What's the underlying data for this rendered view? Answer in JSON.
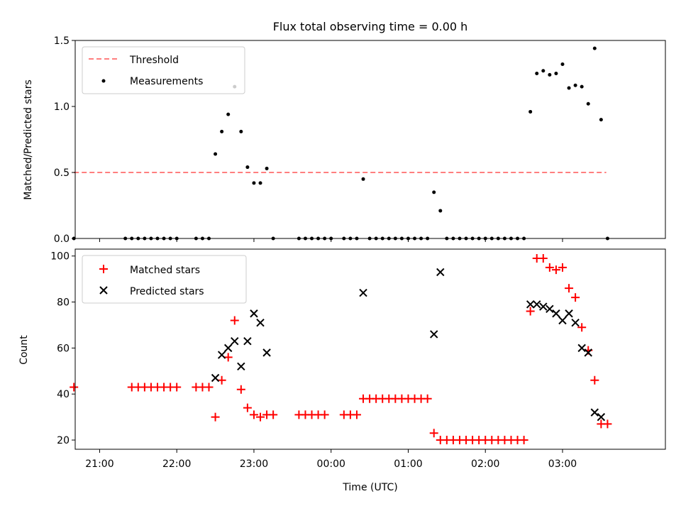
{
  "figure": {
    "title": "Flux total observing time = 0.00 h",
    "xlabel": "Time (UTC)"
  },
  "colors": {
    "threshold": "#ff7f7f",
    "measurements": "#000000",
    "matched": "#ff0000",
    "predicted": "#000000"
  },
  "chart_data": [
    {
      "type": "scatter",
      "title": "Flux total observing time = 0.00 h",
      "xlabel": "",
      "ylabel": "Matched/Predicted stars",
      "xlim": [
        "20:41",
        "04:20"
      ],
      "ylim": [
        0,
        1.5
      ],
      "yticks": [
        {
          "value": 0,
          "label": "0.0"
        },
        {
          "value": 0.5,
          "label": "0.5"
        },
        {
          "value": 1.0,
          "label": "1.0"
        },
        {
          "value": 1.5,
          "label": "1.5"
        }
      ],
      "legend": {
        "placement": "upper-left",
        "entries": [
          "Threshold",
          "Measurements"
        ]
      },
      "threshold": {
        "name": "Threshold",
        "value": 0.5,
        "x_start": "20:40",
        "x_end": "03:34"
      },
      "series": [
        {
          "name": "Measurements",
          "marker": "dot",
          "points": [
            [
              "20:40",
              0
            ],
            [
              "21:20",
              0
            ],
            [
              "21:25",
              0
            ],
            [
              "21:30",
              0
            ],
            [
              "21:35",
              0
            ],
            [
              "21:40",
              0
            ],
            [
              "21:45",
              0
            ],
            [
              "21:50",
              0
            ],
            [
              "21:55",
              0
            ],
            [
              "22:00",
              0
            ],
            [
              "22:15",
              0
            ],
            [
              "22:20",
              0
            ],
            [
              "22:25",
              0
            ],
            [
              "22:30",
              0.64
            ],
            [
              "22:35",
              0.81
            ],
            [
              "22:40",
              0.94
            ],
            [
              "22:45",
              1.15
            ],
            [
              "22:50",
              0.81
            ],
            [
              "22:55",
              0.54
            ],
            [
              "23:00",
              0.42
            ],
            [
              "23:05",
              0.42
            ],
            [
              "23:10",
              0.53
            ],
            [
              "23:15",
              0
            ],
            [
              "23:35",
              0
            ],
            [
              "23:40",
              0
            ],
            [
              "23:45",
              0
            ],
            [
              "23:50",
              0
            ],
            [
              "23:55",
              0
            ],
            [
              "00:00",
              0
            ],
            [
              "00:10",
              0
            ],
            [
              "00:15",
              0
            ],
            [
              "00:20",
              0
            ],
            [
              "00:25",
              0.45
            ],
            [
              "00:30",
              0
            ],
            [
              "00:35",
              0
            ],
            [
              "00:40",
              0
            ],
            [
              "00:45",
              0
            ],
            [
              "00:50",
              0
            ],
            [
              "00:55",
              0
            ],
            [
              "01:00",
              0
            ],
            [
              "01:05",
              0
            ],
            [
              "01:10",
              0
            ],
            [
              "01:15",
              0
            ],
            [
              "01:20",
              0.35
            ],
            [
              "01:25",
              0.21
            ],
            [
              "01:30",
              0
            ],
            [
              "01:35",
              0
            ],
            [
              "01:40",
              0
            ],
            [
              "01:45",
              0
            ],
            [
              "01:50",
              0
            ],
            [
              "01:55",
              0
            ],
            [
              "02:00",
              0
            ],
            [
              "02:05",
              0
            ],
            [
              "02:10",
              0
            ],
            [
              "02:15",
              0
            ],
            [
              "02:20",
              0
            ],
            [
              "02:25",
              0
            ],
            [
              "02:30",
              0
            ],
            [
              "02:35",
              0.96
            ],
            [
              "02:40",
              1.25
            ],
            [
              "02:45",
              1.27
            ],
            [
              "02:50",
              1.24
            ],
            [
              "02:55",
              1.25
            ],
            [
              "03:00",
              1.32
            ],
            [
              "03:05",
              1.14
            ],
            [
              "03:10",
              1.16
            ],
            [
              "03:15",
              1.15
            ],
            [
              "03:20",
              1.02
            ],
            [
              "03:25",
              1.44
            ],
            [
              "03:30",
              0.9
            ],
            [
              "03:35",
              0
            ]
          ]
        }
      ]
    },
    {
      "type": "scatter",
      "xlabel": "Time (UTC)",
      "ylabel": "Count",
      "xlim": [
        "20:41",
        "04:20"
      ],
      "ylim": [
        16,
        103
      ],
      "xticks": [
        "21:00",
        "22:00",
        "23:00",
        "00:00",
        "01:00",
        "02:00",
        "03:00"
      ],
      "yticks": [
        20,
        40,
        60,
        80,
        100
      ],
      "legend": {
        "placement": "upper-left",
        "entries": [
          "Matched stars",
          "Predicted stars"
        ]
      },
      "series": [
        {
          "name": "Matched stars",
          "marker": "plus",
          "points": [
            [
              "20:40",
              43
            ],
            [
              "21:25",
              43
            ],
            [
              "21:30",
              43
            ],
            [
              "21:35",
              43
            ],
            [
              "21:40",
              43
            ],
            [
              "21:45",
              43
            ],
            [
              "21:50",
              43
            ],
            [
              "21:55",
              43
            ],
            [
              "22:00",
              43
            ],
            [
              "22:15",
              43
            ],
            [
              "22:20",
              43
            ],
            [
              "22:25",
              43
            ],
            [
              "22:30",
              30
            ],
            [
              "22:35",
              46
            ],
            [
              "22:40",
              56
            ],
            [
              "22:45",
              72
            ],
            [
              "22:50",
              42
            ],
            [
              "22:55",
              34
            ],
            [
              "23:00",
              31
            ],
            [
              "23:05",
              30
            ],
            [
              "23:10",
              31
            ],
            [
              "23:15",
              31
            ],
            [
              "23:35",
              31
            ],
            [
              "23:40",
              31
            ],
            [
              "23:45",
              31
            ],
            [
              "23:50",
              31
            ],
            [
              "23:55",
              31
            ],
            [
              "00:10",
              31
            ],
            [
              "00:15",
              31
            ],
            [
              "00:20",
              31
            ],
            [
              "00:25",
              38
            ],
            [
              "00:30",
              38
            ],
            [
              "00:35",
              38
            ],
            [
              "00:40",
              38
            ],
            [
              "00:45",
              38
            ],
            [
              "00:50",
              38
            ],
            [
              "00:55",
              38
            ],
            [
              "01:00",
              38
            ],
            [
              "01:05",
              38
            ],
            [
              "01:10",
              38
            ],
            [
              "01:15",
              38
            ],
            [
              "01:20",
              23
            ],
            [
              "01:25",
              20
            ],
            [
              "01:30",
              20
            ],
            [
              "01:35",
              20
            ],
            [
              "01:40",
              20
            ],
            [
              "01:45",
              20
            ],
            [
              "01:50",
              20
            ],
            [
              "01:55",
              20
            ],
            [
              "02:00",
              20
            ],
            [
              "02:05",
              20
            ],
            [
              "02:10",
              20
            ],
            [
              "02:15",
              20
            ],
            [
              "02:20",
              20
            ],
            [
              "02:25",
              20
            ],
            [
              "02:30",
              20
            ],
            [
              "02:35",
              76
            ],
            [
              "02:40",
              99
            ],
            [
              "02:45",
              99
            ],
            [
              "02:50",
              95
            ],
            [
              "02:55",
              94
            ],
            [
              "03:00",
              95
            ],
            [
              "03:05",
              86
            ],
            [
              "03:10",
              82
            ],
            [
              "03:15",
              69
            ],
            [
              "03:20",
              59
            ],
            [
              "03:25",
              46
            ],
            [
              "03:30",
              27
            ],
            [
              "03:35",
              27
            ]
          ]
        },
        {
          "name": "Predicted stars",
          "marker": "x",
          "points": [
            [
              "22:30",
              47
            ],
            [
              "22:35",
              57
            ],
            [
              "22:40",
              60
            ],
            [
              "22:45",
              63
            ],
            [
              "22:50",
              52
            ],
            [
              "22:55",
              63
            ],
            [
              "23:00",
              75
            ],
            [
              "23:05",
              71
            ],
            [
              "23:10",
              58
            ],
            [
              "00:25",
              84
            ],
            [
              "01:20",
              66
            ],
            [
              "01:25",
              93
            ],
            [
              "02:35",
              79
            ],
            [
              "02:40",
              79
            ],
            [
              "02:45",
              78
            ],
            [
              "02:50",
              77
            ],
            [
              "02:55",
              75
            ],
            [
              "03:00",
              72
            ],
            [
              "03:05",
              75
            ],
            [
              "03:10",
              71
            ],
            [
              "03:15",
              60
            ],
            [
              "03:20",
              58
            ],
            [
              "03:25",
              32
            ],
            [
              "03:30",
              30
            ]
          ]
        }
      ]
    }
  ]
}
